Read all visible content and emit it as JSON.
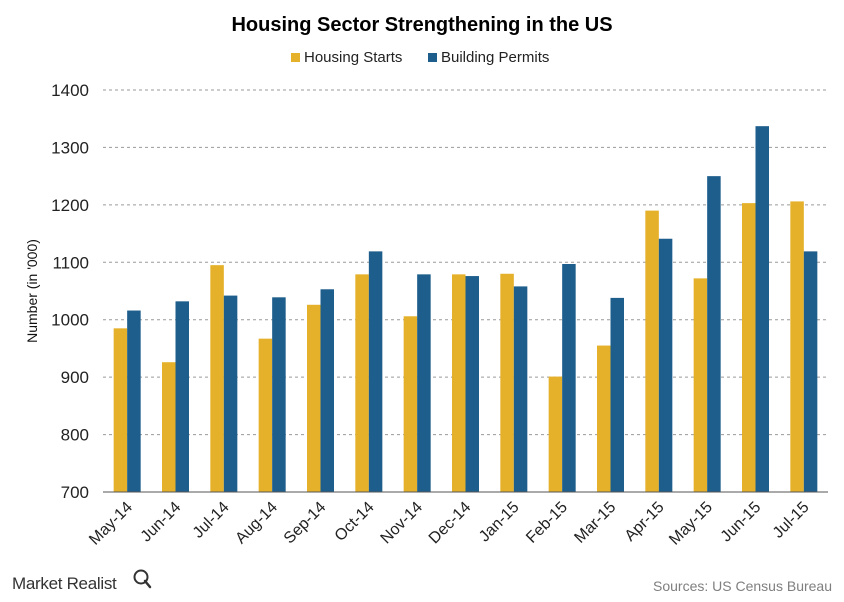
{
  "chart_data": {
    "type": "bar",
    "title": "Housing Sector Strengthening in the US",
    "ylabel": "Number (in '000)",
    "xlabel": "",
    "ylim": [
      700,
      1400
    ],
    "yticks": [
      700,
      800,
      900,
      1000,
      1100,
      1200,
      1300,
      1400
    ],
    "grid": true,
    "legend_position": "top-center",
    "categories": [
      "May-14",
      "Jun-14",
      "Jul-14",
      "Aug-14",
      "Sep-14",
      "Oct-14",
      "Nov-14",
      "Dec-14",
      "Jan-15",
      "Feb-15",
      "Mar-15",
      "Apr-15",
      "May-15",
      "Jun-15",
      "Jul-15"
    ],
    "series": [
      {
        "name": "Housing Starts",
        "color": "#e5b12a",
        "values": [
          985,
          926,
          1095,
          967,
          1026,
          1079,
          1006,
          1079,
          1080,
          901,
          955,
          1190,
          1072,
          1203,
          1206
        ]
      },
      {
        "name": "Building Permits",
        "color": "#1d5e8c",
        "values": [
          1016,
          1032,
          1042,
          1039,
          1053,
          1119,
          1079,
          1076,
          1058,
          1097,
          1038,
          1141,
          1250,
          1337,
          1119
        ]
      }
    ]
  },
  "footer": {
    "brand": "Market Realist",
    "brand_icon": "magnifier-q-icon",
    "source": "Sources: US Census Bureau"
  }
}
